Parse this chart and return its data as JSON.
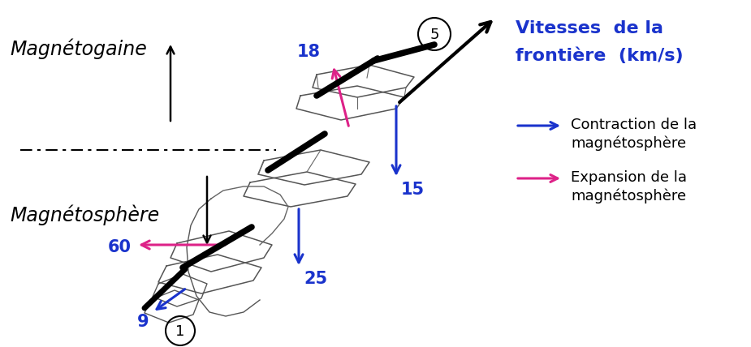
{
  "bg_color": "#ffffff",
  "blue_color": "#1a33cc",
  "pink_color": "#dd2288",
  "black_color": "#000000",
  "title_legend_line1": "Vitesses  de la",
  "title_legend_line2": "frontière  (km/s)",
  "legend_blue_text1": "Contraction de la",
  "legend_blue_text2": "magnétosphère",
  "legend_pink_text1": "Expansion de la",
  "legend_pink_text2": "magnétosphère",
  "label_magnetogaine": "Magnétogaine",
  "label_magnetosphere": "Magnétosphère",
  "label_5": "5",
  "label_1": "1",
  "val_18": "18",
  "val_15": "15",
  "val_25": "25",
  "val_60": "60",
  "val_9": "9",
  "figwidth": 9.25,
  "figheight": 4.28,
  "dpi": 100
}
